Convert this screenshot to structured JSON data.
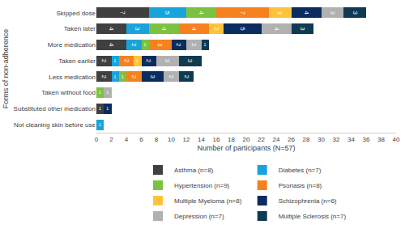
{
  "chart_data": {
    "type": "bar",
    "orientation": "horizontal",
    "stacked": true,
    "data_labels": true,
    "grid": false,
    "legend": "bottom",
    "x_label": "Number of participants (N=57)",
    "y_label": "Forms of non-adherence",
    "categories": [
      "Skipped dose",
      "Taken later",
      "More medication",
      "Taken earlier",
      "Less medication",
      "Taken without food",
      "Substituted other medication",
      "Not cleaning skin before use"
    ],
    "xlim": [
      0,
      40
    ],
    "xticks": [
      0,
      2,
      4,
      6,
      8,
      10,
      12,
      14,
      16,
      18,
      20,
      22,
      24,
      26,
      28,
      30,
      32,
      34,
      36,
      38,
      40
    ],
    "series": [
      {
        "name": "Asthma (n=8)",
        "color": "#404040",
        "values": [
          7,
          4,
          4,
          2,
          2,
          null,
          1,
          null
        ]
      },
      {
        "name": "Diabetes (n=7)",
        "color": "#1aa3da",
        "values": [
          5,
          3,
          2,
          1,
          1,
          null,
          null,
          1
        ]
      },
      {
        "name": "Hypertension (n=9)",
        "color": "#7cc242",
        "values": [
          4,
          4,
          1,
          null,
          1,
          1,
          null,
          null
        ]
      },
      {
        "name": "Psoriasis (n=8)",
        "color": "#f5821f",
        "values": [
          7,
          4,
          3,
          2,
          2,
          null,
          null,
          null
        ]
      },
      {
        "name": "Multiple Myeloma (n=8)",
        "color": "#fdc33c",
        "values": [
          3,
          2,
          null,
          1,
          null,
          null,
          null,
          null
        ]
      },
      {
        "name": "Schizophrenia (n=6)",
        "color": "#0b2c5f",
        "values": [
          4,
          5,
          2,
          2,
          3,
          null,
          1,
          null
        ]
      },
      {
        "name": "Depression (n=7)",
        "color": "#b1b1b1",
        "values": [
          3,
          4,
          2,
          3,
          2,
          1,
          null,
          null
        ]
      },
      {
        "name": "Multiple Sclerosis (n=7)",
        "color": "#0e3a52",
        "values": [
          3,
          3,
          1,
          3,
          2,
          null,
          null,
          null
        ]
      }
    ]
  }
}
